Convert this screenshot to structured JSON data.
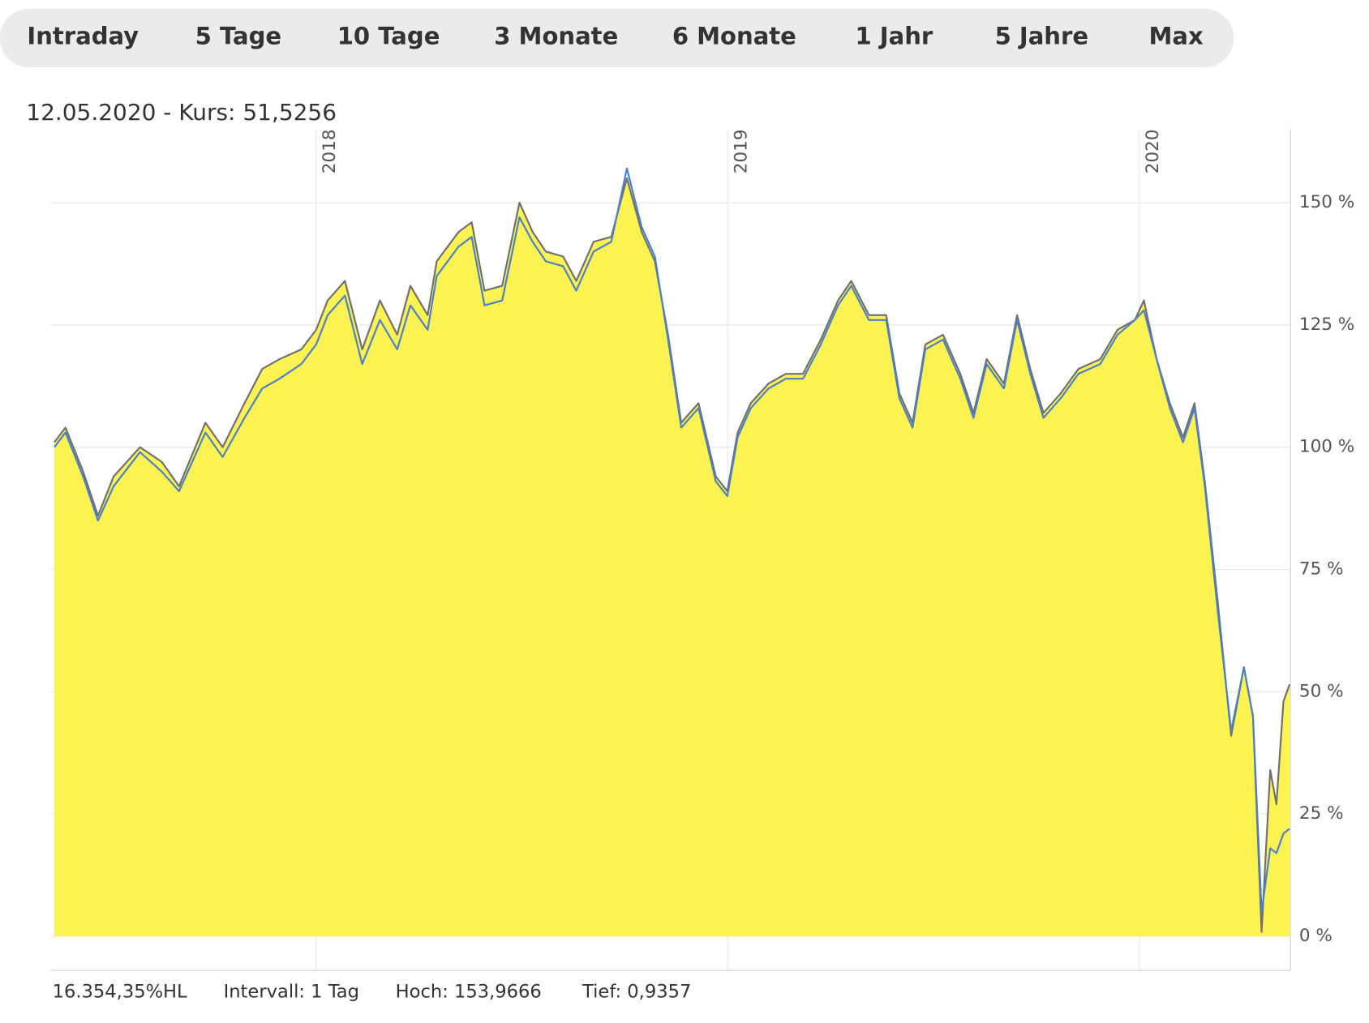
{
  "tabs": [
    "Intraday",
    "5 Tage",
    "10 Tage",
    "3 Monate",
    "6 Monate",
    "1 Jahr",
    "5 Jahre",
    "Max"
  ],
  "header": "12.05.2020  - Kurs: 51,5256",
  "chart_data": {
    "type": "area",
    "x": [
      2017.364,
      2017.391,
      2017.434,
      2017.47,
      2017.508,
      2017.572,
      2017.625,
      2017.667,
      2017.731,
      2017.773,
      2017.826,
      2017.869,
      2017.911,
      2017.964,
      2018.0,
      2018.028,
      2018.07,
      2018.112,
      2018.155,
      2018.197,
      2018.229,
      2018.271,
      2018.293,
      2018.346,
      2018.378,
      2018.409,
      2018.452,
      2018.494,
      2018.526,
      2018.558,
      2018.6,
      2018.632,
      2018.674,
      2018.717,
      2018.755,
      2018.791,
      2018.823,
      2018.855,
      2018.887,
      2018.929,
      2018.971,
      2018.999,
      2019.024,
      2019.056,
      2019.099,
      2019.141,
      2019.183,
      2019.226,
      2019.268,
      2019.3,
      2019.343,
      2019.385,
      2019.417,
      2019.449,
      2019.48,
      2019.523,
      2019.565,
      2019.597,
      2019.629,
      2019.671,
      2019.703,
      2019.735,
      2019.767,
      2019.809,
      2019.852,
      2019.905,
      2019.947,
      2019.989,
      2020.011,
      2020.042,
      2020.074,
      2020.106,
      2020.134,
      2020.159,
      2020.191,
      2020.223,
      2020.254,
      2020.276,
      2020.297,
      2020.318,
      2020.333,
      2020.35,
      2020.365
    ],
    "series": [
      {
        "color": "#6f6f6f",
        "fill": "#fcf252",
        "values": [
          101,
          104,
          95,
          86,
          94,
          100,
          97,
          92,
          105,
          100,
          109,
          116,
          118,
          120,
          124,
          130,
          134,
          120,
          130,
          123,
          133,
          127,
          138,
          144,
          146,
          132,
          133,
          150,
          144,
          140,
          139,
          134,
          142,
          143,
          155,
          144,
          138,
          123,
          105,
          109,
          94,
          91,
          103,
          109,
          113,
          115,
          115,
          122,
          130,
          134,
          127,
          127,
          111,
          105,
          121,
          123,
          115,
          107,
          118,
          113,
          127,
          116,
          107,
          111,
          116,
          118,
          124,
          126,
          130,
          118,
          109,
          102,
          109,
          93,
          68,
          41,
          55,
          45,
          0.9,
          34,
          27,
          48,
          51.5
        ]
      },
      {
        "color": "#4a7fcb",
        "values": [
          100,
          103,
          94,
          85,
          92,
          99,
          95,
          91,
          103,
          98,
          106,
          112,
          114,
          117,
          121,
          127,
          131,
          117,
          126,
          120,
          129,
          124,
          135,
          141,
          143,
          129,
          130,
          147,
          142,
          138,
          137,
          132,
          140,
          142,
          157,
          145,
          139,
          122,
          104,
          108,
          93,
          90,
          102,
          108,
          112,
          114,
          114,
          121,
          129,
          133,
          126,
          126,
          110,
          104,
          120,
          122,
          114,
          106,
          117,
          112,
          126,
          115,
          106,
          110,
          115,
          117,
          123,
          126,
          128,
          118,
          108,
          101,
          108,
          92,
          66,
          42,
          55,
          45,
          5,
          18,
          17,
          21,
          22
        ]
      }
    ],
    "xlim": [
      2017.355,
      2020.367
    ],
    "xticks": [
      2018,
      2019,
      2020
    ],
    "ylim": [
      -7,
      165
    ],
    "yticks": [
      {
        "value": 0,
        "label": "0 %"
      },
      {
        "value": 25,
        "label": "25 %"
      },
      {
        "value": 50,
        "label": "50 %"
      },
      {
        "value": 75,
        "label": "75 %"
      },
      {
        "value": 100,
        "label": "100 %"
      },
      {
        "value": 125,
        "label": "125 %"
      },
      {
        "value": 150,
        "label": "150 %"
      }
    ],
    "grid": true
  },
  "footer": [
    "16.354,35%HL",
    "Intervall: 1 Tag",
    "Hoch: 153,9666",
    "Tief: 0,9357"
  ]
}
